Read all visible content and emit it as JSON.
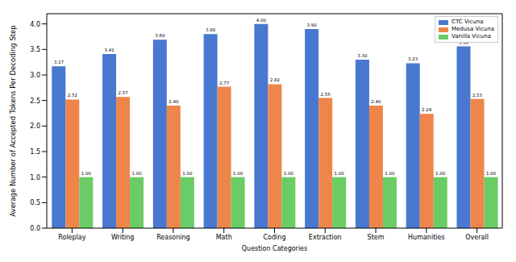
{
  "chart_data": {
    "type": "bar",
    "x_label": "Question Categories",
    "y_label": "Average Number of Accepted Tokens Per Decoding Step",
    "categories": [
      "Roleplay",
      "Writing",
      "Reasoning",
      "Math",
      "Coding",
      "Extraction",
      "Stem",
      "Humanities",
      "Overall"
    ],
    "series": [
      {
        "name": "CTC Vicuna",
        "color": "#4878d0",
        "values": [
          3.17,
          3.41,
          3.69,
          3.8,
          4.0,
          3.9,
          3.3,
          3.23,
          3.56
        ],
        "value_labels": [
          "3.17",
          "3.41",
          "3.69",
          "3.80",
          "4.00",
          "3.90",
          "3.30",
          "3.23",
          "3.56"
        ]
      },
      {
        "name": "Medusa Vicuna",
        "color": "#ee854a",
        "values": [
          2.52,
          2.57,
          2.4,
          2.77,
          2.82,
          2.55,
          2.4,
          2.24,
          2.53
        ],
        "value_labels": [
          "2.52",
          "2.57",
          "2.40",
          "2.77",
          "2.82",
          "2.55",
          "2.40",
          "2.24",
          "2.53"
        ]
      },
      {
        "name": "Vanilla Vicuna",
        "color": "#6acc64",
        "values": [
          1.0,
          1.0,
          1.0,
          1.0,
          1.0,
          1.0,
          1.0,
          1.0,
          1.0
        ],
        "value_labels": [
          "1.00",
          "1.00",
          "1.00",
          "1.00",
          "1.00",
          "1.00",
          "1.00",
          "1.00",
          "1.00"
        ]
      }
    ],
    "ylim": [
      0,
      4.2
    ],
    "yticks": [
      {
        "value": 0,
        "label": "0.0"
      },
      {
        "value": 0.5,
        "label": "0.5"
      },
      {
        "value": 1,
        "label": "1.0"
      },
      {
        "value": 1.5,
        "label": "1.5"
      },
      {
        "value": 2,
        "label": "2.0"
      },
      {
        "value": 2.5,
        "label": "2.5"
      },
      {
        "value": 3,
        "label": "3.0"
      },
      {
        "value": 3.5,
        "label": "3.5"
      },
      {
        "value": 4,
        "label": "4.0"
      }
    ],
    "grid": false,
    "legend": "upper right",
    "data_labels": true
  }
}
